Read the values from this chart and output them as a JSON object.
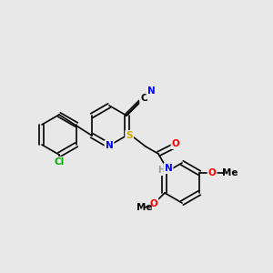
{
  "bg_color": "#e8e8e8",
  "bond_color": "#000000",
  "atom_colors": {
    "N": "#0000ff",
    "Cl": "#00aa00",
    "S": "#ccaa00",
    "O": "#ff0000",
    "C": "#000000",
    "H": "#999999"
  },
  "font_size": 7.5,
  "bond_width": 1.2
}
